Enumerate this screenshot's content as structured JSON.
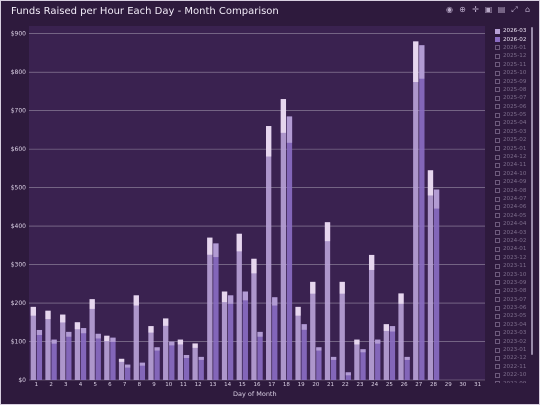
{
  "window": {
    "title": "Funds Raised per Hour Each Day - Month Comparison",
    "modebar_icons": [
      "camera-icon",
      "zoom-icon",
      "pan-icon",
      "zoom-in-icon",
      "zoom-out-icon",
      "autoscale-icon",
      "reset-icon"
    ]
  },
  "colors": {
    "background": "#2e1a3d",
    "grid": "#e6e1ea",
    "series_2026_03": "#b7a1d6",
    "series_2026_02": "#8a6cc2",
    "highlight": "#f0e2f4"
  },
  "chart_data": {
    "type": "bar",
    "title": "Funds Raised per Hour Each Day - Month Comparison",
    "xlabel": "Day of Month",
    "ylabel": "",
    "x": [
      1,
      2,
      3,
      4,
      5,
      6,
      7,
      8,
      9,
      10,
      11,
      12,
      13,
      14,
      15,
      16,
      17,
      18,
      19,
      20,
      21,
      22,
      23,
      24,
      25,
      26,
      27,
      28,
      29,
      30,
      31
    ],
    "ylim": [
      0,
      920
    ],
    "yticks": [
      "$0",
      "$100",
      "$200",
      "$300",
      "$400",
      "$500",
      "$600",
      "$700",
      "$800",
      "$900"
    ],
    "ytick_values": [
      0,
      100,
      200,
      300,
      400,
      500,
      600,
      700,
      800,
      900
    ],
    "grid": true,
    "legend_position": "right",
    "series": [
      {
        "name": "2026-03",
        "values": [
          190,
          180,
          170,
          150,
          210,
          115,
          55,
          220,
          140,
          160,
          105,
          95,
          370,
          230,
          380,
          315,
          660,
          730,
          190,
          255,
          410,
          255,
          105,
          325,
          145,
          225,
          880,
          545,
          0,
          0,
          0
        ]
      },
      {
        "name": "2026-02",
        "values": [
          130,
          105,
          125,
          135,
          120,
          110,
          40,
          45,
          85,
          100,
          65,
          60,
          355,
          220,
          230,
          125,
          215,
          685,
          145,
          85,
          60,
          20,
          80,
          105,
          140,
          60,
          870,
          495,
          0,
          0,
          0
        ]
      }
    ],
    "legend": [
      "2026-03",
      "2026-02",
      "2026-01",
      "2025-12",
      "2025-11",
      "2025-10",
      "2025-09",
      "2025-08",
      "2025-07",
      "2025-06",
      "2025-05",
      "2025-04",
      "2025-03",
      "2025-02",
      "2025-01",
      "2024-12",
      "2024-11",
      "2024-10",
      "2024-09",
      "2024-08",
      "2024-07",
      "2024-06",
      "2024-05",
      "2024-04",
      "2024-03",
      "2024-02",
      "2024-01",
      "2023-12",
      "2023-11",
      "2023-10",
      "2023-09",
      "2023-08",
      "2023-07",
      "2023-06",
      "2023-05",
      "2023-04",
      "2023-03",
      "2023-02",
      "2023-01",
      "2022-12",
      "2022-11",
      "2022-10",
      "2022-09",
      "2022-08"
    ],
    "legend_active": [
      "2026-03",
      "2026-02"
    ]
  }
}
